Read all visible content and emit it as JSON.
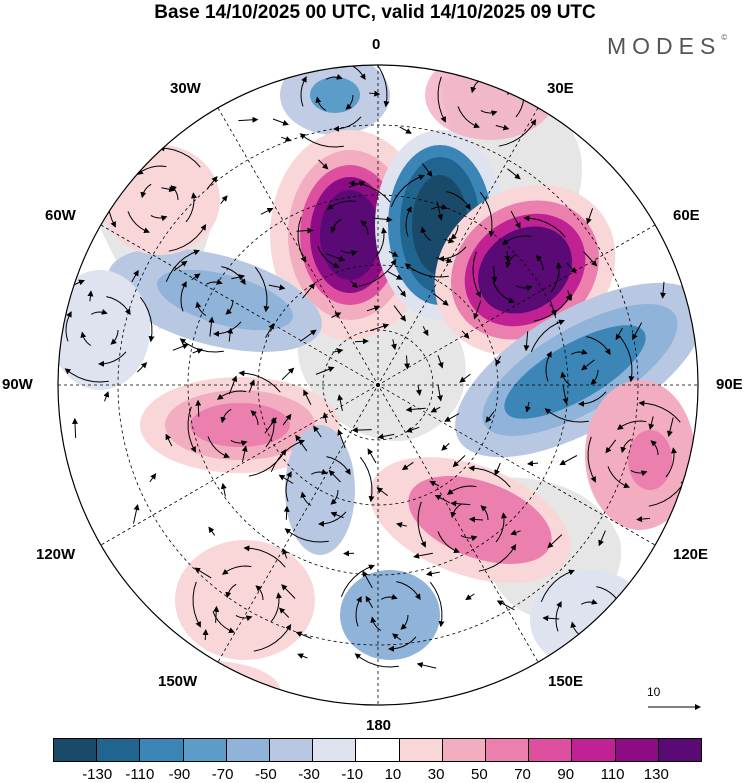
{
  "title": "Base 14/10/2025 00 UTC, valid 14/10/2025 09 UTC",
  "logo": "MODES",
  "logo_mark": "©",
  "map": {
    "projection": "polar stereographic (south pole)",
    "meridian_labels": {
      "m0": "0",
      "m30e": "30E",
      "m60e": "60E",
      "m90e": "90E",
      "m120e": "120E",
      "m150e": "150E",
      "m180": "180",
      "m150w": "150W",
      "m120w": "120W",
      "m90w": "90W",
      "m60w": "60W",
      "m30w": "30W"
    },
    "anomaly_centers": [
      {
        "name": "negative near 0",
        "sign": "negative",
        "value": -90
      },
      {
        "name": "positive near 15W",
        "sign": "positive",
        "value": 130
      },
      {
        "name": "negative near 10E",
        "sign": "negative",
        "value": -130
      },
      {
        "name": "positive near 40E",
        "sign": "positive",
        "value": 130
      },
      {
        "name": "negative near 70E",
        "sign": "negative",
        "value": -70
      },
      {
        "name": "positive near 100W",
        "sign": "positive",
        "value": 70
      }
    ],
    "reference_vector": "10"
  },
  "colorbar": {
    "colors": [
      "#1a4a6a",
      "#1f6590",
      "#3b86b7",
      "#5b9cc9",
      "#8fb3d9",
      "#b9c8e2",
      "#dfe3f0",
      "#ffffff",
      "#f9d7d9",
      "#f3adc0",
      "#eb7fae",
      "#de4fa0",
      "#c02193",
      "#8b0c84",
      "#5a0a74"
    ],
    "tick_labels": [
      "-130",
      "-110",
      "-90",
      "-70",
      "-50",
      "-30",
      "-10",
      "10",
      "30",
      "50",
      "70",
      "90",
      "110",
      "130"
    ]
  }
}
